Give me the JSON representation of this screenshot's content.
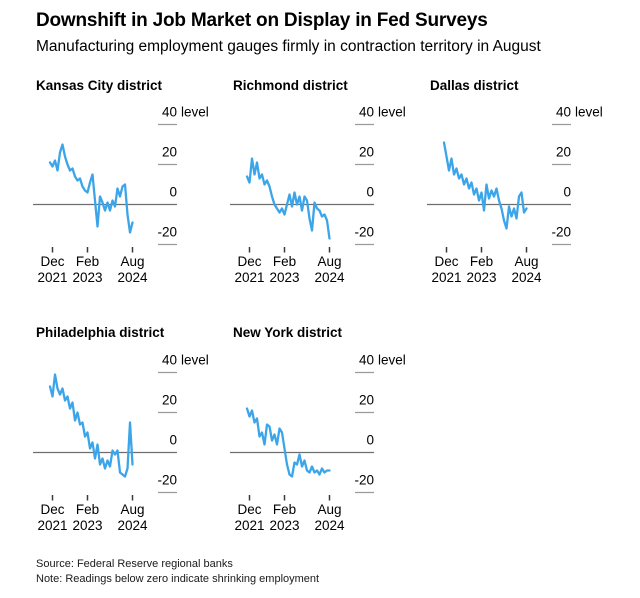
{
  "header": {
    "title": "Downshift in Job Market on Display in Fed Surveys",
    "subtitle": "Manufacturing employment gauges firmly in contraction territory in August"
  },
  "footer": {
    "source": "Source: Federal Reserve regional banks",
    "note": "Note: Readings below zero indicate shrinking employment"
  },
  "colors": {
    "series_line": "#3CA5E9",
    "zero_line": "#6E6E6E",
    "y_tick_dash": "#9B9B9B",
    "x_tick_dash": "#3A3A3A",
    "text": "#000000"
  },
  "chart_data": {
    "type": "line",
    "frequency": "monthly",
    "x_start": "Nov 2021",
    "x_end": "Aug 2024",
    "ylim": [
      -25,
      45
    ],
    "y_ticks": [
      40,
      20,
      0,
      -20
    ],
    "y_unit_label": "level",
    "grid": "zero-line-only",
    "legend": "none",
    "x_ticks": [
      {
        "month": "Dec",
        "year": "2021",
        "index": 1
      },
      {
        "month": "Feb",
        "year": "2023",
        "index": 15
      },
      {
        "month": "Aug",
        "year": "2024",
        "index": 33
      }
    ],
    "charts": [
      {
        "title": "Kansas City district",
        "values": [
          21,
          19,
          22,
          17,
          26,
          30,
          24,
          20,
          17,
          18,
          14,
          12,
          13,
          9,
          7,
          6,
          11,
          15,
          2,
          -11,
          4,
          1,
          -3,
          1,
          -3,
          2,
          -1,
          8,
          4,
          9,
          10,
          -5,
          -14,
          -9
        ]
      },
      {
        "title": "Richmond district",
        "values": [
          14,
          11,
          23,
          15,
          21,
          13,
          15,
          10,
          12,
          9,
          4,
          0,
          -2,
          -4,
          -2,
          -5,
          0,
          5,
          -1,
          6,
          0,
          4,
          -3,
          4,
          2,
          -7,
          -13,
          1,
          -2,
          -3,
          -6,
          -5,
          -8,
          -17
        ]
      },
      {
        "title": "Dallas district",
        "values": [
          31,
          24,
          17,
          23,
          15,
          18,
          13,
          15,
          10,
          13,
          8,
          11,
          5,
          8,
          2,
          6,
          -3,
          10,
          3,
          7,
          4,
          8,
          2,
          -2,
          -8,
          -12,
          -1,
          -6,
          -2,
          -7,
          4,
          6,
          -4,
          -2
        ]
      },
      {
        "title": "Philadelphia district",
        "values": [
          33,
          28,
          39,
          32,
          29,
          32,
          26,
          28,
          22,
          25,
          16,
          20,
          14,
          15,
          8,
          10,
          2,
          5,
          -3,
          4,
          -6,
          -3,
          -8,
          -4,
          -7,
          1,
          -1,
          1,
          -10,
          -11,
          -12,
          -8,
          15,
          -6
        ]
      },
      {
        "title": "New York district",
        "values": [
          22,
          18,
          21,
          15,
          17,
          8,
          10,
          4,
          14,
          13,
          6,
          9,
          4,
          12,
          10,
          2,
          -6,
          -11,
          -12,
          -5,
          -6,
          -1,
          -7,
          -4,
          -9,
          -10,
          -7,
          -10,
          -9,
          -11,
          -8,
          -10,
          -9,
          -9
        ]
      }
    ]
  }
}
